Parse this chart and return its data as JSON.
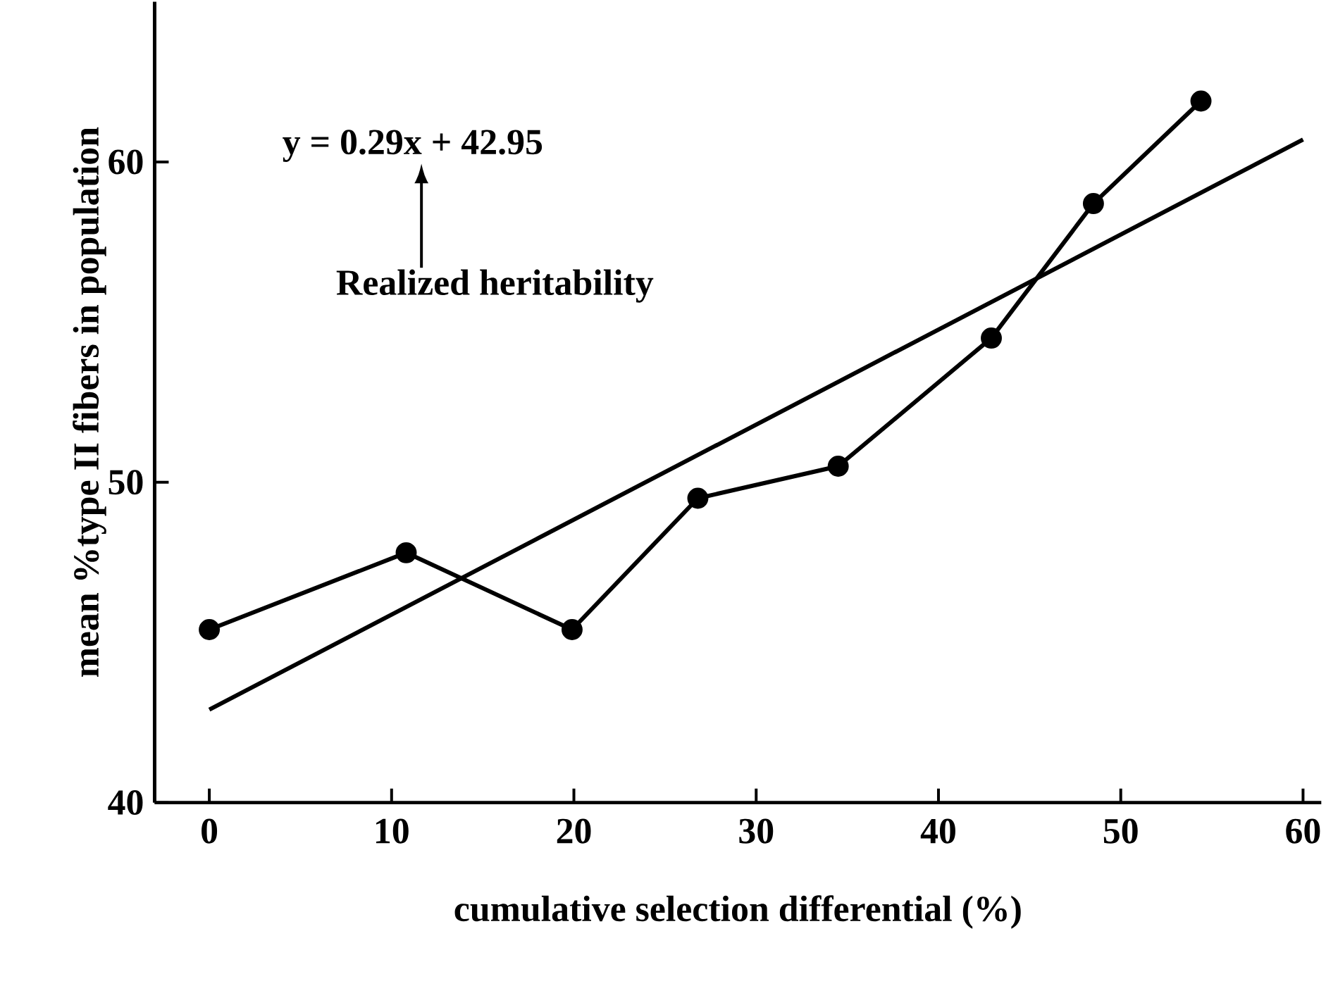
{
  "chart_data": {
    "type": "line",
    "xlabel": "cumulative selection differential (%)",
    "ylabel": "mean %type II fibers in population",
    "xlim": [
      -3,
      61
    ],
    "ylim": [
      40,
      65
    ],
    "xticks": [
      0,
      10,
      20,
      30,
      40,
      50,
      60
    ],
    "yticks": [
      40,
      50,
      60
    ],
    "grid": false,
    "annotations": [
      "y = 0.29x + 42.95",
      "Realized heritability"
    ],
    "series": [
      {
        "color": "#000000",
        "marker": "circle",
        "x": [
          0,
          10.8,
          19.9,
          26.8,
          34.5,
          42.9,
          48.5,
          54.4
        ],
        "values": [
          45.4,
          47.8,
          45.4,
          49.5,
          50.5,
          54.5,
          58.7,
          61.9
        ]
      },
      {
        "type": "line",
        "color": "#000000",
        "marker": "none",
        "x": [
          0,
          60
        ],
        "values": [
          42.9,
          60.7
        ]
      }
    ]
  }
}
